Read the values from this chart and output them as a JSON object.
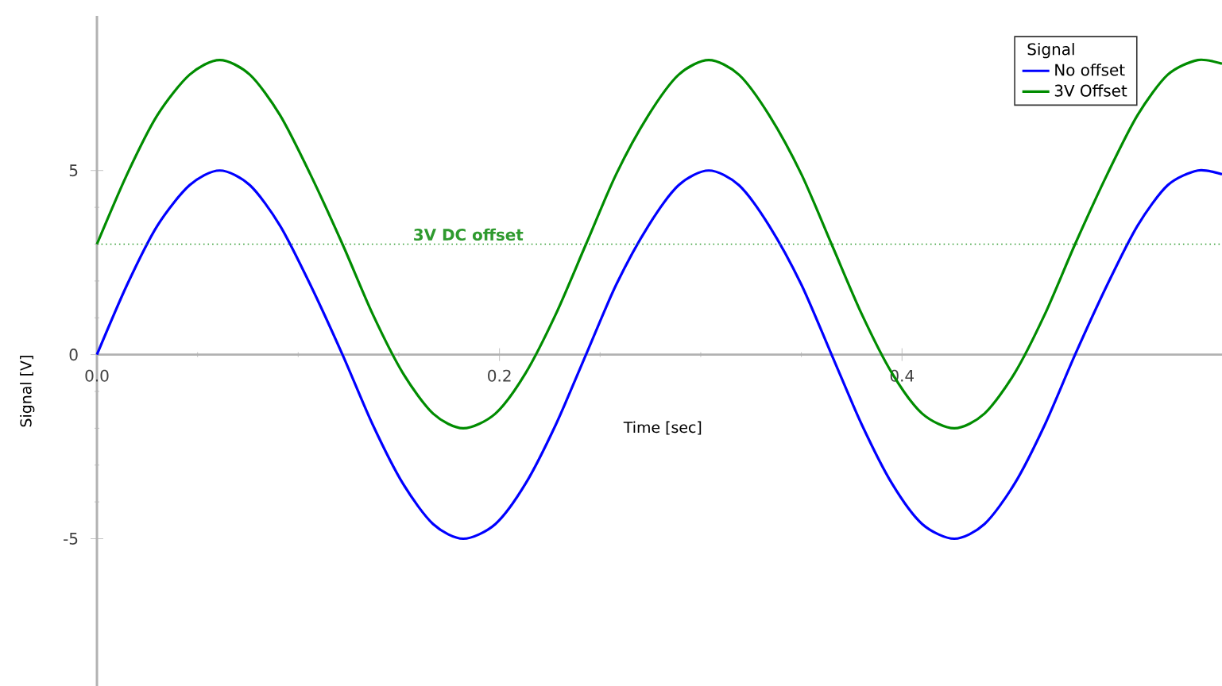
{
  "chart_data": {
    "type": "line",
    "xlabel": "Time [sec]",
    "ylabel": "Signal [V]",
    "legend_title": "Signal",
    "legend": "top right",
    "grid": false,
    "marker": "none",
    "line_style": "solid",
    "x": [
      0,
      0.015,
      0.03,
      0.046,
      0.061,
      0.076,
      0.091,
      0.106,
      0.122,
      0.137,
      0.152,
      0.167,
      0.182,
      0.198,
      0.213,
      0.228,
      0.243,
      0.258,
      0.274,
      0.289,
      0.304,
      0.319,
      0.334,
      0.35,
      0.365,
      0.38,
      0.395,
      0.41,
      0.426,
      0.441,
      0.456,
      0.471,
      0.486,
      0.502,
      0.517,
      0.532,
      0.547,
      0.559
    ],
    "series": [
      {
        "name": "No offset",
        "color": "#0000ff",
        "values": [
          0,
          1.9,
          3.5,
          4.6,
          5,
          4.6,
          3.5,
          1.9,
          0,
          -1.9,
          -3.5,
          -4.6,
          -5,
          -4.6,
          -3.5,
          -1.9,
          0,
          1.9,
          3.5,
          4.6,
          5,
          4.6,
          3.5,
          1.9,
          0,
          -1.9,
          -3.5,
          -4.6,
          -5,
          -4.6,
          -3.5,
          -1.9,
          0,
          1.9,
          3.5,
          4.6,
          5,
          4.9
        ]
      },
      {
        "name": "3V Offset",
        "color": "#008c00",
        "values": [
          3,
          4.9,
          6.5,
          7.6,
          8,
          7.6,
          6.5,
          4.9,
          3,
          1.1,
          -0.5,
          -1.6,
          -2,
          -1.6,
          -0.5,
          1.1,
          3,
          4.9,
          6.5,
          7.6,
          8,
          7.6,
          6.5,
          4.9,
          3,
          1.1,
          -0.5,
          -1.6,
          -2,
          -1.6,
          -0.5,
          1.1,
          3,
          4.9,
          6.5,
          7.6,
          8,
          7.9
        ]
      }
    ],
    "ref_lines": [
      {
        "axis": "y",
        "value": 3,
        "label": "3V DC offset",
        "color": "#2e9a2e",
        "line_style": "dotted"
      }
    ],
    "xlim": [
      0,
      0.559
    ],
    "ylim": [
      -9,
      9.2
    ],
    "xticks": [
      {
        "value": 0,
        "label": "0.0"
      },
      {
        "value": 0.2,
        "label": "0.2"
      },
      {
        "value": 0.4,
        "label": "0.4"
      }
    ],
    "yticks": [
      -5,
      0,
      5
    ]
  }
}
